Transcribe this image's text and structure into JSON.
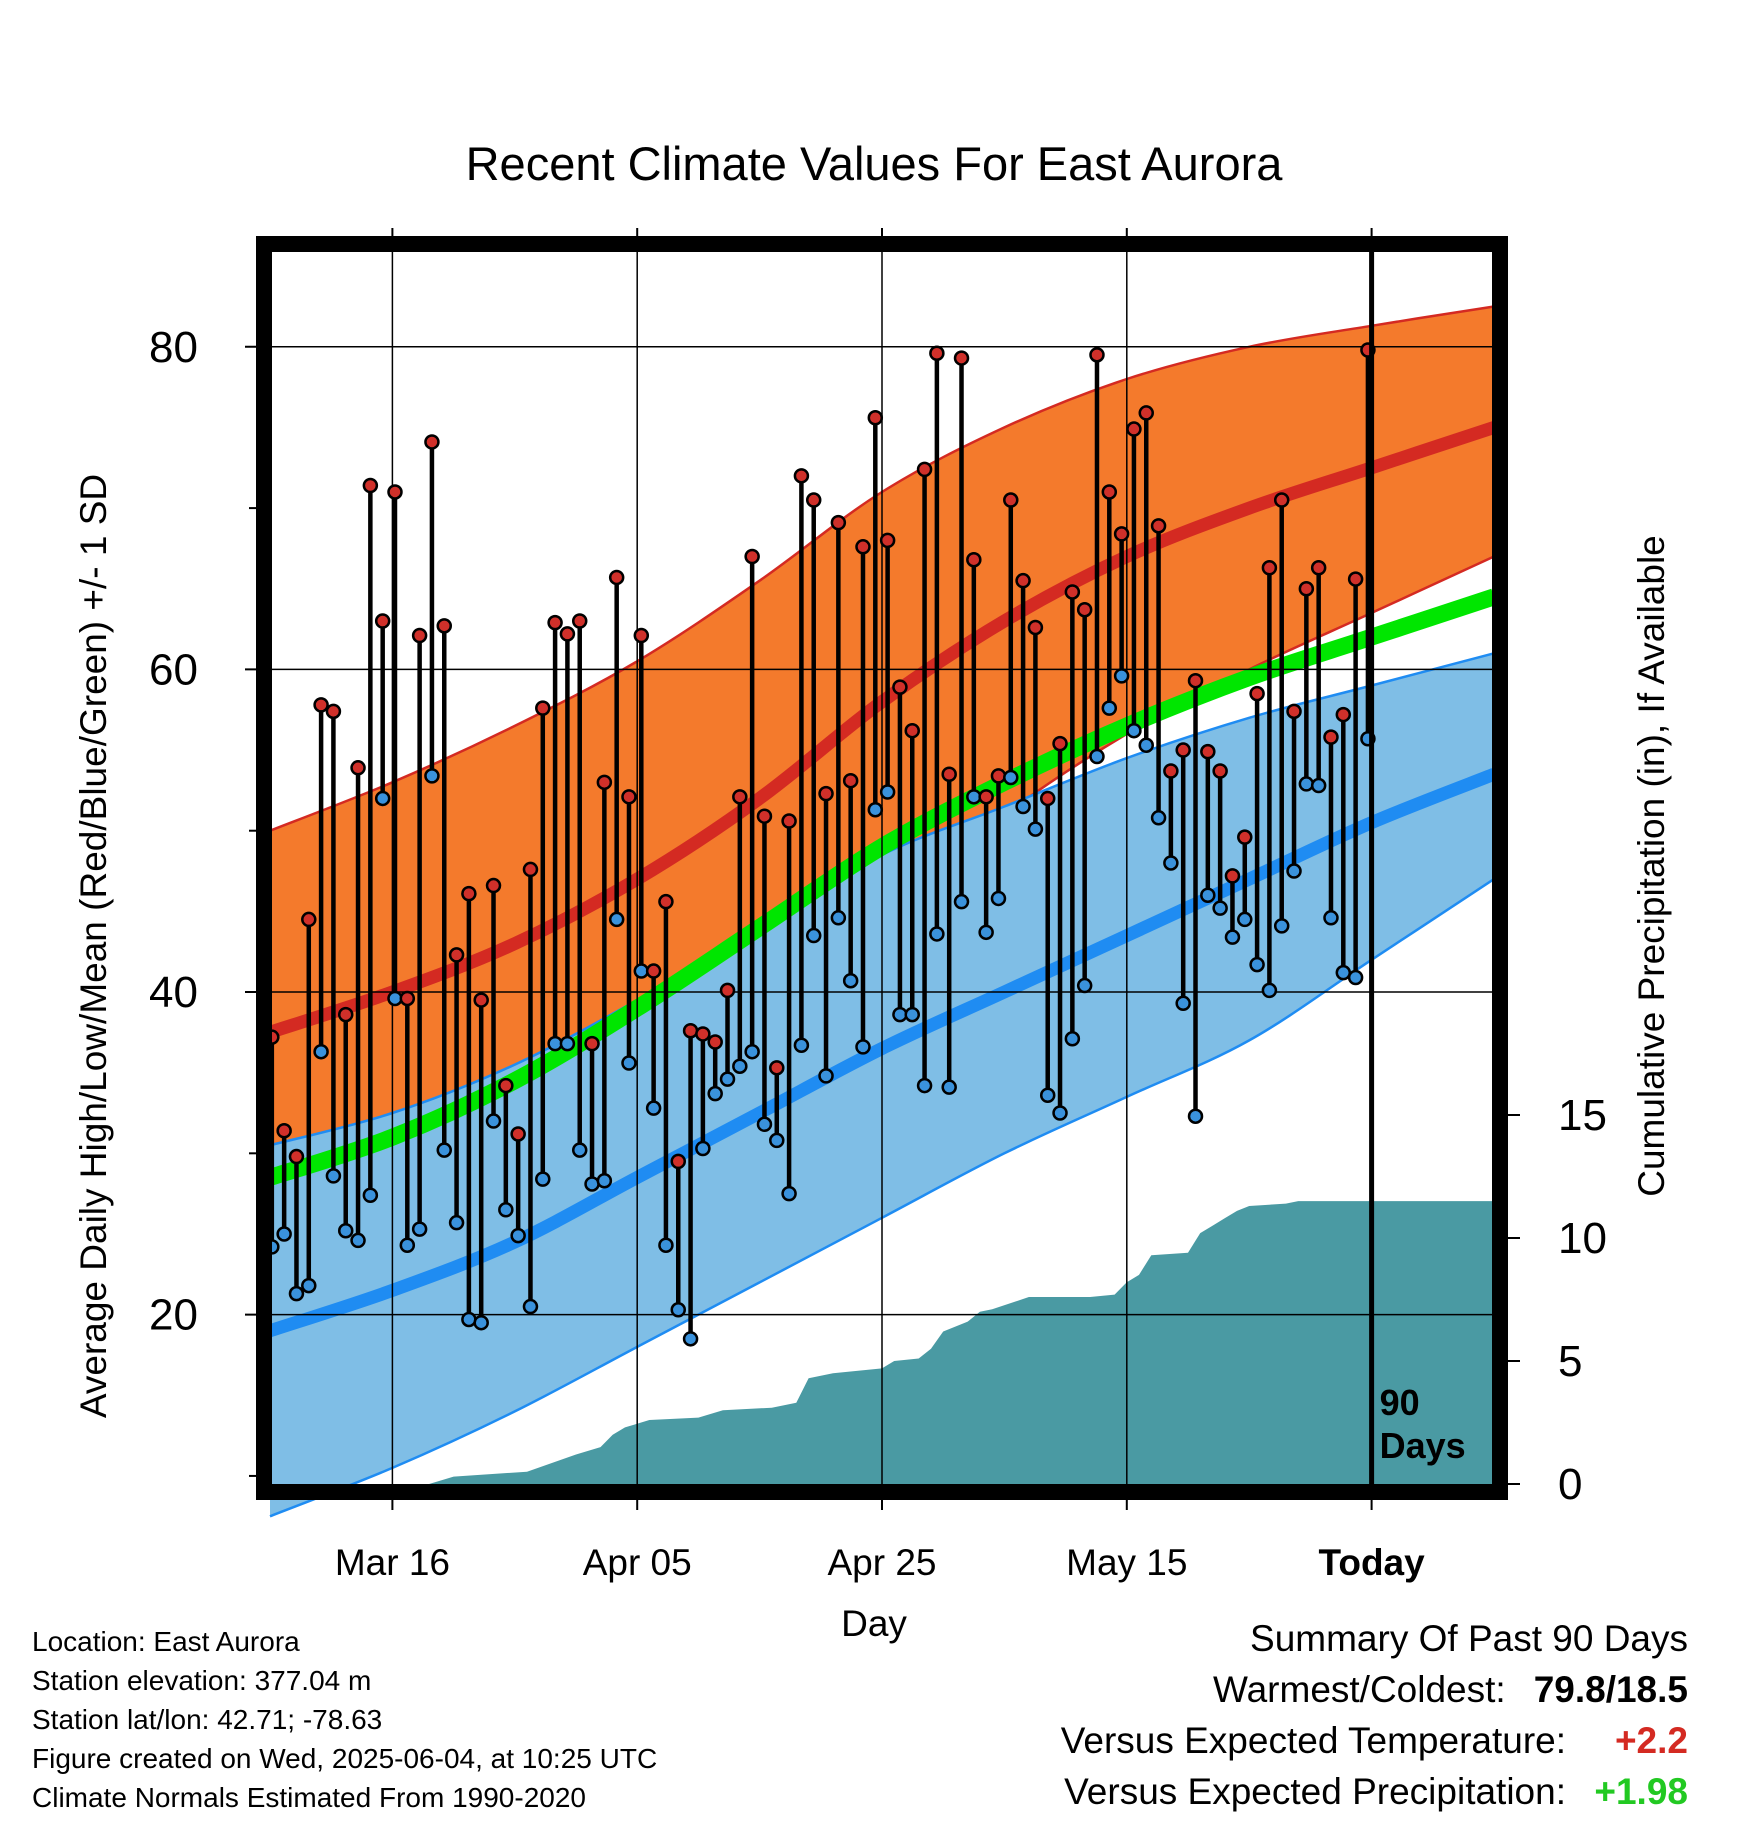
{
  "chart_data": {
    "type": "line",
    "title": "Recent Climate Values For East Aurora",
    "xlabel": "Day",
    "ylabel": "Average Daily High/Low/Mean (Red/Blue/Green) +/- 1 SD",
    "y2label": "Cumulative Precipitation (in), If Available",
    "x_ticks": [
      "Mar 16",
      "Apr 05",
      "Apr 25",
      "May 15",
      "Today"
    ],
    "y_ticks": [
      20,
      40,
      60,
      80
    ],
    "y2_ticks": [
      0,
      5,
      10,
      15
    ],
    "today_marker": "90\nDays",
    "normals": {
      "high_mean": [
        {
          "x": 0,
          "y": 37.5
        },
        {
          "x": 10,
          "y": 40
        },
        {
          "x": 20,
          "y": 43
        },
        {
          "x": 30,
          "y": 47
        },
        {
          "x": 40,
          "y": 52
        },
        {
          "x": 50,
          "y": 58
        },
        {
          "x": 60,
          "y": 63
        },
        {
          "x": 70,
          "y": 67
        },
        {
          "x": 80,
          "y": 70
        },
        {
          "x": 90,
          "y": 72.5
        },
        {
          "x": 100,
          "y": 75
        }
      ],
      "high_sd_upper": [
        {
          "x": 0,
          "y": 50
        },
        {
          "x": 10,
          "y": 53
        },
        {
          "x": 20,
          "y": 56.5
        },
        {
          "x": 30,
          "y": 60.5
        },
        {
          "x": 40,
          "y": 65.5
        },
        {
          "x": 50,
          "y": 71
        },
        {
          "x": 60,
          "y": 75
        },
        {
          "x": 70,
          "y": 78
        },
        {
          "x": 80,
          "y": 80
        },
        {
          "x": 90,
          "y": 81.3
        },
        {
          "x": 100,
          "y": 82.5
        }
      ],
      "high_sd_lower": [
        {
          "x": 0,
          "y": 25
        },
        {
          "x": 10,
          "y": 27
        },
        {
          "x": 20,
          "y": 30
        },
        {
          "x": 30,
          "y": 34
        },
        {
          "x": 40,
          "y": 39
        },
        {
          "x": 50,
          "y": 45
        },
        {
          "x": 60,
          "y": 51
        },
        {
          "x": 70,
          "y": 56
        },
        {
          "x": 80,
          "y": 60
        },
        {
          "x": 90,
          "y": 63.5
        },
        {
          "x": 100,
          "y": 67
        }
      ],
      "mean": [
        {
          "x": 0,
          "y": 28.5
        },
        {
          "x": 10,
          "y": 31
        },
        {
          "x": 20,
          "y": 34.5
        },
        {
          "x": 30,
          "y": 39
        },
        {
          "x": 40,
          "y": 44
        },
        {
          "x": 50,
          "y": 49
        },
        {
          "x": 60,
          "y": 53
        },
        {
          "x": 70,
          "y": 56.5
        },
        {
          "x": 80,
          "y": 59.5
        },
        {
          "x": 90,
          "y": 62
        },
        {
          "x": 100,
          "y": 64.5
        }
      ],
      "low_mean": [
        {
          "x": 0,
          "y": 19
        },
        {
          "x": 10,
          "y": 21.5
        },
        {
          "x": 20,
          "y": 24.5
        },
        {
          "x": 30,
          "y": 28.5
        },
        {
          "x": 40,
          "y": 32.5
        },
        {
          "x": 50,
          "y": 36.5
        },
        {
          "x": 60,
          "y": 40
        },
        {
          "x": 70,
          "y": 43.5
        },
        {
          "x": 80,
          "y": 47
        },
        {
          "x": 90,
          "y": 50.5
        },
        {
          "x": 100,
          "y": 53.5
        }
      ],
      "low_sd_upper": [
        {
          "x": 0,
          "y": 30.5
        },
        {
          "x": 10,
          "y": 32.5
        },
        {
          "x": 20,
          "y": 35.5
        },
        {
          "x": 30,
          "y": 39.5
        },
        {
          "x": 40,
          "y": 44
        },
        {
          "x": 50,
          "y": 48.5
        },
        {
          "x": 60,
          "y": 51.5
        },
        {
          "x": 70,
          "y": 54.5
        },
        {
          "x": 80,
          "y": 57
        },
        {
          "x": 90,
          "y": 59
        },
        {
          "x": 100,
          "y": 61
        }
      ],
      "low_sd_lower": [
        {
          "x": 0,
          "y": 7.5
        },
        {
          "x": 10,
          "y": 10.5
        },
        {
          "x": 20,
          "y": 14
        },
        {
          "x": 30,
          "y": 18
        },
        {
          "x": 40,
          "y": 22
        },
        {
          "x": 50,
          "y": 26
        },
        {
          "x": 60,
          "y": 30
        },
        {
          "x": 70,
          "y": 33.5
        },
        {
          "x": 80,
          "y": 37
        },
        {
          "x": 90,
          "y": 42
        },
        {
          "x": 100,
          "y": 47
        }
      ]
    },
    "daily": [
      {
        "x": 0,
        "high": 37.2,
        "low": 24.2
      },
      {
        "x": 1,
        "high": 31.4,
        "low": 25
      },
      {
        "x": 2,
        "high": 29.8,
        "low": 21.3
      },
      {
        "x": 3,
        "high": 44.5,
        "low": 21.8
      },
      {
        "x": 4,
        "high": 57.8,
        "low": 36.3
      },
      {
        "x": 5,
        "high": 57.4,
        "low": 28.6
      },
      {
        "x": 6,
        "high": 38.6,
        "low": 25.2
      },
      {
        "x": 7,
        "high": 53.9,
        "low": 24.6
      },
      {
        "x": 8,
        "high": 71.4,
        "low": 27.4
      },
      {
        "x": 9,
        "high": 63,
        "low": 52
      },
      {
        "x": 10,
        "high": 71,
        "low": 39.6
      },
      {
        "x": 11,
        "high": 39.6,
        "low": 24.3
      },
      {
        "x": 12,
        "high": 62.1,
        "low": 25.3
      },
      {
        "x": 13,
        "high": 74.1,
        "low": 53.4
      },
      {
        "x": 14,
        "high": 62.7,
        "low": 30.2
      },
      {
        "x": 15,
        "high": 42.3,
        "low": 25.7
      },
      {
        "x": 16,
        "high": 46.1,
        "low": 19.7
      },
      {
        "x": 17,
        "high": 39.5,
        "low": 19.5
      },
      {
        "x": 18,
        "high": 46.6,
        "low": 32
      },
      {
        "x": 19,
        "high": 34.2,
        "low": 26.5
      },
      {
        "x": 20,
        "high": 31.2,
        "low": 24.9
      },
      {
        "x": 21,
        "high": 47.6,
        "low": 20.5
      },
      {
        "x": 22,
        "high": 57.6,
        "low": 28.4
      },
      {
        "x": 23,
        "high": 62.9,
        "low": 36.8
      },
      {
        "x": 24,
        "high": 62.2,
        "low": 36.8
      },
      {
        "x": 25,
        "high": 63,
        "low": 30.2
      },
      {
        "x": 26,
        "high": 36.8,
        "low": 28.1
      },
      {
        "x": 27,
        "high": 53,
        "low": 28.3
      },
      {
        "x": 28,
        "high": 65.7,
        "low": 44.5
      },
      {
        "x": 29,
        "high": 52.1,
        "low": 35.6
      },
      {
        "x": 30,
        "high": 62.1,
        "low": 41.3
      },
      {
        "x": 31,
        "high": 41.3,
        "low": 32.8
      },
      {
        "x": 32,
        "high": 45.6,
        "low": 24.3
      },
      {
        "x": 33,
        "high": 29.5,
        "low": 20.3
      },
      {
        "x": 34,
        "high": 37.6,
        "low": 18.5
      },
      {
        "x": 35,
        "high": 37.4,
        "low": 30.3
      },
      {
        "x": 36,
        "high": 36.9,
        "low": 33.7
      },
      {
        "x": 37,
        "high": 40.1,
        "low": 34.6
      },
      {
        "x": 38,
        "high": 52.1,
        "low": 35.4
      },
      {
        "x": 39,
        "high": 67,
        "low": 36.3
      },
      {
        "x": 40,
        "high": 50.9,
        "low": 31.8
      },
      {
        "x": 41,
        "high": 35.3,
        "low": 30.8
      },
      {
        "x": 42,
        "high": 50.6,
        "low": 27.5
      },
      {
        "x": 43,
        "high": 72,
        "low": 36.7
      },
      {
        "x": 44,
        "high": 70.5,
        "low": 43.5
      },
      {
        "x": 45,
        "high": 52.3,
        "low": 34.8
      },
      {
        "x": 46,
        "high": 69.1,
        "low": 44.6
      },
      {
        "x": 47,
        "high": 53.1,
        "low": 40.7
      },
      {
        "x": 48,
        "high": 67.6,
        "low": 36.6
      },
      {
        "x": 49,
        "high": 75.6,
        "low": 51.3
      },
      {
        "x": 50,
        "high": 68,
        "low": 52.4
      },
      {
        "x": 51,
        "high": 58.9,
        "low": 38.6
      },
      {
        "x": 52,
        "high": 56.2,
        "low": 38.6
      },
      {
        "x": 53,
        "high": 72.4,
        "low": 34.2
      },
      {
        "x": 54,
        "high": 79.6,
        "low": 43.6
      },
      {
        "x": 55,
        "high": 53.5,
        "low": 34.1
      },
      {
        "x": 56,
        "high": 79.3,
        "low": 45.6
      },
      {
        "x": 57,
        "high": 66.8,
        "low": 52.1
      },
      {
        "x": 58,
        "high": 52.1,
        "low": 43.7
      },
      {
        "x": 59,
        "high": 53.4,
        "low": 45.8
      },
      {
        "x": 60,
        "high": 70.5,
        "low": 53.3
      },
      {
        "x": 61,
        "high": 65.5,
        "low": 51.5
      },
      {
        "x": 62,
        "high": 62.6,
        "low": 50.1
      },
      {
        "x": 63,
        "high": 52,
        "low": 33.6
      },
      {
        "x": 64,
        "high": 55.4,
        "low": 32.5
      },
      {
        "x": 65,
        "high": 64.8,
        "low": 37.1
      },
      {
        "x": 66,
        "high": 63.7,
        "low": 40.4
      },
      {
        "x": 67,
        "high": 79.5,
        "low": 54.6
      },
      {
        "x": 68,
        "high": 71,
        "low": 57.6
      },
      {
        "x": 69,
        "high": 68.4,
        "low": 59.6
      },
      {
        "x": 70,
        "high": 74.9,
        "low": 56.2
      },
      {
        "x": 71,
        "high": 75.9,
        "low": 55.3
      },
      {
        "x": 72,
        "high": 68.9,
        "low": 50.8
      },
      {
        "x": 73,
        "high": 53.7,
        "low": 48
      },
      {
        "x": 74,
        "high": 55,
        "low": 39.3
      },
      {
        "x": 75,
        "high": 59.3,
        "low": 32.3
      },
      {
        "x": 76,
        "high": 54.9,
        "low": 46
      },
      {
        "x": 77,
        "high": 53.7,
        "low": 45.2
      },
      {
        "x": 78,
        "high": 47.2,
        "low": 43.4
      },
      {
        "x": 79,
        "high": 49.6,
        "low": 44.5
      },
      {
        "x": 80,
        "high": 58.5,
        "low": 41.7
      },
      {
        "x": 81,
        "high": 66.3,
        "low": 40.1
      },
      {
        "x": 82,
        "high": 70.5,
        "low": 44.1
      },
      {
        "x": 83,
        "high": 57.4,
        "low": 47.5
      },
      {
        "x": 84,
        "high": 65,
        "low": 52.9
      },
      {
        "x": 85,
        "high": 66.3,
        "low": 52.8
      },
      {
        "x": 86,
        "high": 55.8,
        "low": 44.6
      },
      {
        "x": 87,
        "high": 57.2,
        "low": 41.2
      },
      {
        "x": 88,
        "high": 65.6,
        "low": 40.9
      },
      {
        "x": 89,
        "high": 79.8,
        "low": 55.7
      }
    ],
    "precip_cumulative": [
      {
        "x": 0,
        "y": 0
      },
      {
        "x": 13,
        "y": 0
      },
      {
        "x": 15,
        "y": 0.3
      },
      {
        "x": 21,
        "y": 0.5
      },
      {
        "x": 25,
        "y": 1.2
      },
      {
        "x": 27,
        "y": 1.5
      },
      {
        "x": 28,
        "y": 2
      },
      {
        "x": 29,
        "y": 2.3
      },
      {
        "x": 31,
        "y": 2.6
      },
      {
        "x": 35,
        "y": 2.7
      },
      {
        "x": 37,
        "y": 3
      },
      {
        "x": 41,
        "y": 3.1
      },
      {
        "x": 43,
        "y": 3.3
      },
      {
        "x": 44,
        "y": 4.3
      },
      {
        "x": 46,
        "y": 4.5
      },
      {
        "x": 50,
        "y": 4.7
      },
      {
        "x": 51,
        "y": 5
      },
      {
        "x": 53,
        "y": 5.1
      },
      {
        "x": 54,
        "y": 5.5
      },
      {
        "x": 55,
        "y": 6.2
      },
      {
        "x": 57,
        "y": 6.6
      },
      {
        "x": 58,
        "y": 7
      },
      {
        "x": 59,
        "y": 7.1
      },
      {
        "x": 62,
        "y": 7.6
      },
      {
        "x": 67,
        "y": 7.6
      },
      {
        "x": 69,
        "y": 7.7
      },
      {
        "x": 70,
        "y": 8.2
      },
      {
        "x": 71,
        "y": 8.5
      },
      {
        "x": 72,
        "y": 9.3
      },
      {
        "x": 75,
        "y": 9.4
      },
      {
        "x": 76,
        "y": 10.2
      },
      {
        "x": 77,
        "y": 10.5
      },
      {
        "x": 78,
        "y": 10.8
      },
      {
        "x": 79,
        "y": 11.1
      },
      {
        "x": 80,
        "y": 11.3
      },
      {
        "x": 83,
        "y": 11.4
      },
      {
        "x": 84,
        "y": 11.5
      },
      {
        "x": 90,
        "y": 11.5
      },
      {
        "x": 100,
        "y": 11.5
      }
    ],
    "colors": {
      "high_band": "#f47a2c",
      "high_line": "#d42a22",
      "low_band": "#7fbee6",
      "low_line": "#1f8cf2",
      "mean_line": "#00e600",
      "precip": "#4a9aa3",
      "high_dot": "#d0302a",
      "low_dot": "#3a92dc"
    }
  },
  "info": {
    "location": "Location: East Aurora",
    "elevation": "Station elevation: 377.04 m",
    "latlon": "Station lat/lon: 42.71; -78.63",
    "created": "Figure created on Wed, 2025-06-04, at 10:25 UTC",
    "normals": "Climate Normals Estimated From 1990-2020"
  },
  "summary": {
    "title": "Summary Of Past 90 Days",
    "warm_cold_label": "Warmest/Coldest:",
    "warm_cold_value": "79.8/18.5",
    "temp_label": "Versus Expected Temperature:",
    "temp_value": "+2.2",
    "temp_color": "#d42a22",
    "precip_label": "Versus Expected Precipitation:",
    "precip_value": "+1.98",
    "precip_color": "#22c922"
  }
}
